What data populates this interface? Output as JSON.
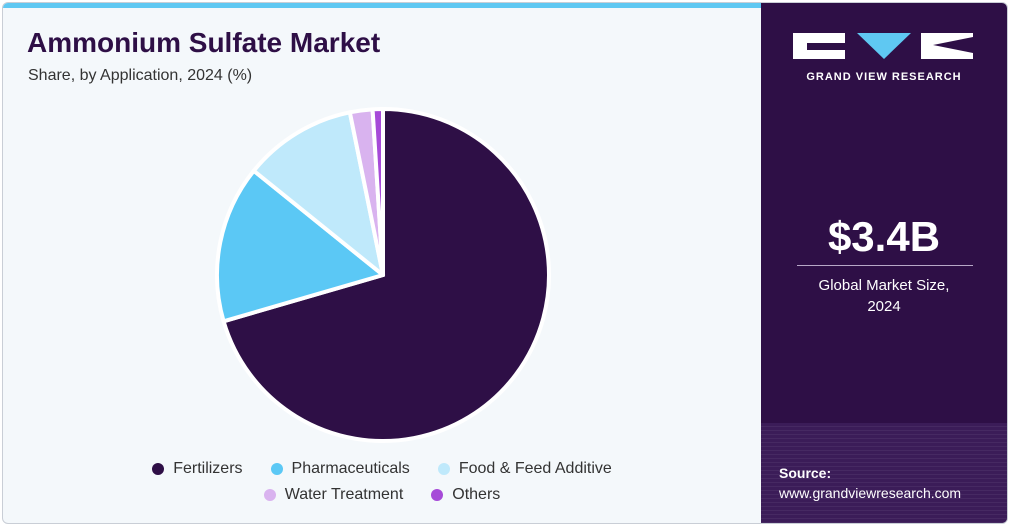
{
  "header": {
    "title": "Ammonium Sulfate Market",
    "subtitle": "Share, by Application, 2024 (%)"
  },
  "chart_data": {
    "type": "pie",
    "title": "Ammonium Sulfate Market",
    "subtitle": "Share, by Application, 2024 (%)",
    "categories": [
      "Fertilizers",
      "Pharmaceuticals",
      "Food & Feed Additive",
      "Water Treatment",
      "Others"
    ],
    "values": [
      70.5,
      15.3,
      11.0,
      2.2,
      1.0
    ],
    "colors": [
      "#2e0f46",
      "#5bc8f5",
      "#bfe9fb",
      "#d9b3ef",
      "#a64ad8"
    ],
    "start_angle_deg": 0,
    "direction": "clockwise",
    "legend_position": "bottom"
  },
  "legend": {
    "items": [
      {
        "label": "Fertilizers",
        "color": "#2e0f46"
      },
      {
        "label": "Pharmaceuticals",
        "color": "#5bc8f5"
      },
      {
        "label": "Food & Feed Additive",
        "color": "#bfe9fb"
      },
      {
        "label": "Water Treatment",
        "color": "#d9b3ef"
      },
      {
        "label": "Others",
        "color": "#a64ad8"
      }
    ]
  },
  "sidebar": {
    "brand": "GRAND VIEW RESEARCH",
    "metric_value": "$3.4B",
    "metric_label_line1": "Global Market Size,",
    "metric_label_line2": "2024",
    "source_label": "Source:",
    "source_url": "www.grandviewresearch.com"
  },
  "colors": {
    "accent": "#5fc8f2",
    "brand_purple": "#2e0f46",
    "background": "#f4f8fb"
  }
}
